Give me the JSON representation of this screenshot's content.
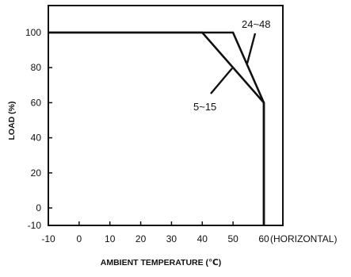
{
  "chart_data": {
    "type": "line",
    "title": "",
    "xlabel": "AMBIENT TEMPERATURE (℃)",
    "ylabel": "LOAD (%)",
    "x_axis_note": "(HORIZONTAL)",
    "xlim": [
      -10,
      60
    ],
    "ylim": [
      -10,
      100
    ],
    "x_ticks": [
      -10,
      0,
      10,
      20,
      30,
      40,
      50,
      60
    ],
    "y_ticks": [
      -10,
      0,
      20,
      40,
      60,
      80,
      100
    ],
    "grid": false,
    "series": [
      {
        "name": "24~48",
        "x": [
          -10,
          50,
          60,
          60
        ],
        "y": [
          100,
          100,
          60,
          -10
        ]
      },
      {
        "name": "5~15",
        "x": [
          -10,
          40,
          60,
          60
        ],
        "y": [
          100,
          100,
          60,
          -10
        ]
      }
    ],
    "annotations": [
      "24~48",
      "5~15"
    ]
  }
}
